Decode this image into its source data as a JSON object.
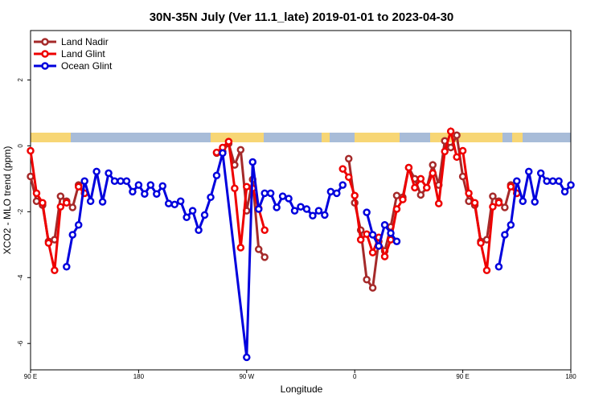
{
  "chart_data": {
    "type": "line",
    "title": "30N-35N July (Ver 11.1_late)   2019-01-01 to 2023-04-30",
    "x_label": "Longitude",
    "y_label": "XCO2 - MLO trend (ppm)",
    "xlim": [
      90,
      540
    ],
    "xticks": [
      {
        "value": 90,
        "label": "90 E"
      },
      180,
      {
        "value": 270,
        "label": "90 W"
      },
      {
        "value": 360,
        "label": "0"
      },
      {
        "value": 450,
        "label": "90 E"
      },
      {
        "value": 540,
        "label": "180"
      }
    ],
    "ylim": [
      -6.8,
      3.5
    ],
    "yticks": [
      -6,
      -4,
      -2,
      0,
      2
    ],
    "legend": "top-left",
    "series": [
      {
        "name": "Land Nadir",
        "color": "#a52a2a",
        "x": [
          90,
          95,
          100,
          105,
          110,
          115,
          120,
          125,
          130,
          135,
          240,
          245,
          250,
          255,
          260,
          265,
          270,
          275,
          280,
          285,
          300,
          355,
          360,
          365,
          370,
          375,
          380,
          385,
          390,
          395,
          400,
          405,
          410,
          415,
          420,
          425,
          430,
          435,
          440,
          445,
          450,
          455,
          460,
          465,
          470,
          475,
          480,
          485,
          490,
          495
        ],
        "values": [
          -0.93,
          -1.68,
          -1.8,
          -2.9,
          -2.85,
          -1.53,
          -1.68,
          -1.87,
          -1.19,
          -1.44,
          null,
          -0.22,
          -0.17,
          0.07,
          -0.58,
          -0.12,
          -1.97,
          -1.02,
          -3.14,
          -3.38,
          null,
          -0.39,
          -1.73,
          -2.56,
          -4.06,
          -4.31,
          -2.9,
          -3.19,
          -2.46,
          -1.51,
          -1.56,
          -0.66,
          -1.0,
          -1.49,
          -1.27,
          -0.58,
          -1.19,
          0.15,
          -0.05,
          0.32,
          -0.93,
          -1.68,
          -1.8,
          -2.9,
          -2.85,
          -1.53,
          -1.68,
          -1.87,
          -1.19,
          -1.44
        ]
      },
      {
        "name": "Land Glint",
        "color": "#ee0000",
        "x": [
          90,
          95,
          100,
          105,
          110,
          115,
          120,
          125,
          130,
          135,
          240,
          245,
          250,
          255,
          260,
          265,
          270,
          275,
          280,
          285,
          300,
          350,
          355,
          360,
          365,
          370,
          375,
          380,
          385,
          390,
          395,
          400,
          405,
          410,
          415,
          420,
          425,
          430,
          435,
          440,
          445,
          450,
          455,
          460,
          465,
          470,
          475,
          480,
          485,
          490,
          495
        ],
        "values": [
          -0.15,
          -1.44,
          -1.73,
          -2.95,
          -3.78,
          -1.85,
          -1.73,
          null,
          -1.24,
          -1.44,
          null,
          -0.2,
          -0.05,
          0.13,
          -1.29,
          -3.09,
          -1.24,
          -1.29,
          -1.9,
          -2.56,
          null,
          -0.7,
          -0.95,
          -1.51,
          -2.85,
          -2.68,
          -3.24,
          -2.78,
          -3.36,
          -2.85,
          -1.92,
          -1.63,
          -0.66,
          -1.27,
          -1.0,
          -1.27,
          -0.83,
          -1.75,
          -0.17,
          0.44,
          -0.34,
          -0.15,
          -1.44,
          -1.73,
          -2.95,
          -3.78,
          -1.85,
          -1.73,
          null,
          -1.24,
          -1.44
        ]
      },
      {
        "name": "Ocean Glint",
        "color": "#0000dd",
        "x": [
          120,
          125,
          130,
          135,
          140,
          145,
          150,
          155,
          160,
          165,
          170,
          175,
          180,
          185,
          190,
          195,
          200,
          205,
          210,
          215,
          220,
          225,
          230,
          235,
          240,
          245,
          250,
          270,
          275,
          280,
          285,
          290,
          295,
          300,
          305,
          310,
          315,
          320,
          325,
          330,
          335,
          340,
          345,
          350,
          360,
          370,
          375,
          380,
          385,
          390,
          395,
          440,
          480,
          485,
          490,
          495,
          500,
          505,
          510,
          515,
          520,
          525,
          530,
          535,
          540
        ],
        "values": [
          -3.67,
          -2.7,
          -2.4,
          -1.07,
          -1.68,
          -0.78,
          -1.7,
          -0.83,
          -1.07,
          -1.07,
          -1.07,
          -1.39,
          -1.19,
          -1.46,
          -1.19,
          -1.46,
          -1.22,
          -1.75,
          -1.78,
          -1.68,
          -2.17,
          -1.97,
          -2.56,
          -2.1,
          -1.56,
          -0.9,
          -0.22,
          -6.42,
          -0.49,
          -1.92,
          -1.44,
          -1.44,
          -1.87,
          -1.53,
          -1.6,
          -1.97,
          -1.85,
          -1.92,
          -2.12,
          -1.97,
          -2.1,
          -1.39,
          -1.44,
          -1.19,
          null,
          -2.02,
          -2.7,
          -3.04,
          -2.4,
          -2.65,
          -2.9,
          null,
          -3.67,
          -2.7,
          -2.4,
          -1.07,
          -1.68,
          -0.78,
          -1.7,
          -0.83,
          -1.07,
          -1.07,
          -1.07,
          -1.39,
          -1.19
        ]
      }
    ]
  }
}
